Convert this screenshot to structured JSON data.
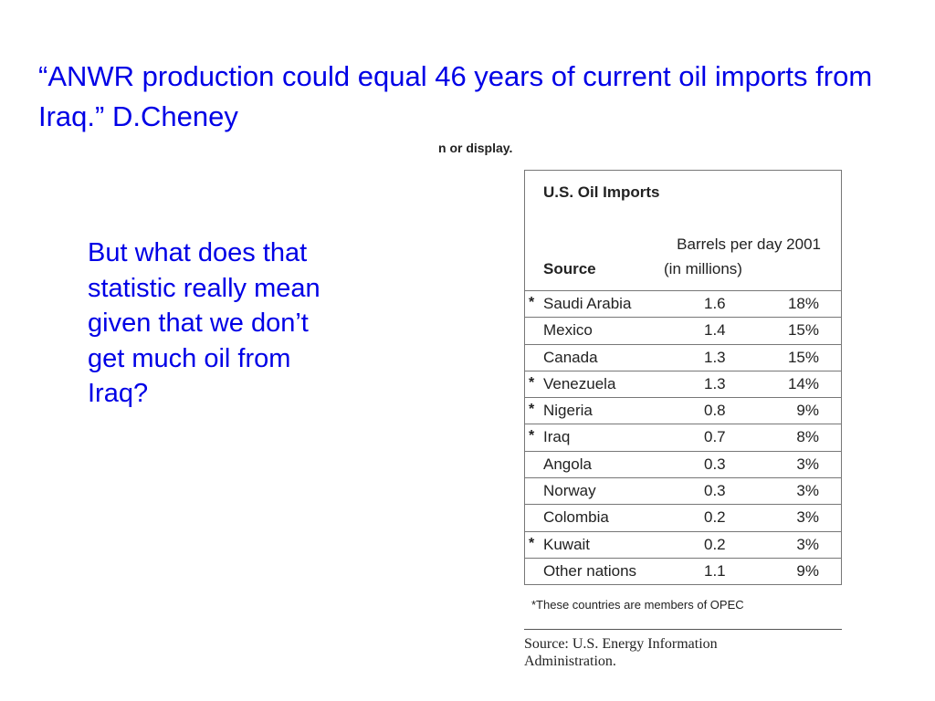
{
  "slide": {
    "title": "“ANWR production could equal 46 years of current oil imports from Iraq.” D.Cheney",
    "cropped_text": "n or display.",
    "question": "But what does that statistic really mean given that we don’t get much oil from Iraq?"
  },
  "table": {
    "title": "U.S. Oil Imports",
    "column_header_1": "Barrels per day 2001",
    "column_header_2": "(in millions)",
    "source_header": "Source",
    "rows": [
      {
        "marker": "*",
        "country": "Saudi Arabia",
        "barrels": "1.6",
        "percent": "18%"
      },
      {
        "marker": "",
        "country": "Mexico",
        "barrels": "1.4",
        "percent": "15%"
      },
      {
        "marker": "",
        "country": "Canada",
        "barrels": "1.3",
        "percent": "15%"
      },
      {
        "marker": "*",
        "country": "Venezuela",
        "barrels": "1.3",
        "percent": "14%"
      },
      {
        "marker": "*",
        "country": "Nigeria",
        "barrels": "0.8",
        "percent": "9%"
      },
      {
        "marker": "*",
        "country": "Iraq",
        "barrels": "0.7",
        "percent": "8%"
      },
      {
        "marker": "",
        "country": "Angola",
        "barrels": "0.3",
        "percent": "3%"
      },
      {
        "marker": "",
        "country": "Norway",
        "barrels": "0.3",
        "percent": "3%"
      },
      {
        "marker": "",
        "country": "Colombia",
        "barrels": "0.2",
        "percent": "3%"
      },
      {
        "marker": "*",
        "country": "Kuwait",
        "barrels": "0.2",
        "percent": "3%"
      },
      {
        "marker": "",
        "country": "Other nations",
        "barrels": "1.1",
        "percent": "9%"
      }
    ],
    "footnote": "*These countries are members of OPEC",
    "source_line_1": "Source: U.S. Energy Information",
    "source_line_2": "Administration."
  },
  "colors": {
    "slide_text": "#0000e6",
    "table_text": "#222222",
    "rules": "#777777",
    "background": "#ffffff"
  }
}
